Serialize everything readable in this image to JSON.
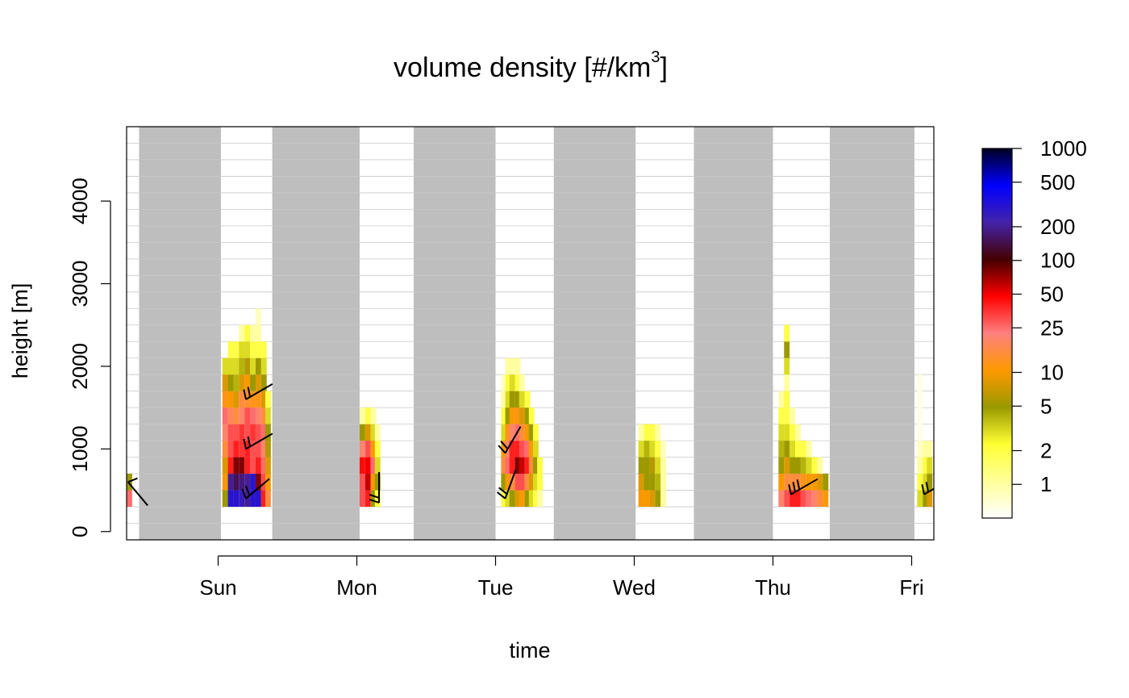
{
  "chart_data": {
    "type": "heatmap",
    "title": "volume density [#/km",
    "title_superscript": "3",
    "title_close": "]",
    "xlabel": "time",
    "ylabel": "height [m]",
    "x_ticks": [
      {
        "label": "Sun",
        "day": 1.0
      },
      {
        "label": "Mon",
        "day": 2.0
      },
      {
        "label": "Tue",
        "day": 3.0
      },
      {
        "label": "Wed",
        "day": 4.0
      },
      {
        "label": "Thu",
        "day": 5.0
      },
      {
        "label": "Fri",
        "day": 6.0
      }
    ],
    "xlim_days": [
      0.34,
      6.16
    ],
    "y_ticks": [
      0,
      1000,
      2000,
      3000,
      4000
    ],
    "ylim": [
      -100,
      4900
    ],
    "night_periods_days": [
      [
        0.43,
        1.02
      ],
      [
        1.39,
        2.02
      ],
      [
        2.41,
        3.0
      ],
      [
        3.42,
        4.01
      ],
      [
        4.43,
        5.0
      ],
      [
        5.41,
        6.02
      ]
    ],
    "colorbar": {
      "scale": "log",
      "range": [
        0.5,
        1000
      ],
      "ticks": [
        1,
        2,
        5,
        10,
        25,
        50,
        100,
        200,
        500,
        1000
      ],
      "colors": [
        "#ffffff",
        "#ffff99",
        "#ffff33",
        "#999900",
        "#ff9900",
        "#ff8080",
        "#ff0000",
        "#440000",
        "#4422aa",
        "#0000ff",
        "#000022"
      ]
    },
    "layers_m": [
      400,
      600,
      800,
      1000,
      1200,
      1400,
      1600,
      1800,
      2000,
      2200,
      2400,
      2600
    ],
    "density_columns": [
      {
        "day": 0.36,
        "values": [
          25,
          5
        ]
      },
      {
        "day": 1.05,
        "values": [
          5,
          10,
          8,
          15,
          20,
          25,
          12,
          8,
          3
        ]
      },
      {
        "day": 1.09,
        "values": [
          300,
          200,
          40,
          30,
          30,
          18,
          10,
          5,
          3,
          2
        ]
      },
      {
        "day": 1.13,
        "values": [
          300,
          150,
          80,
          40,
          30,
          15,
          8,
          4,
          3,
          2
        ]
      },
      {
        "day": 1.17,
        "values": [
          250,
          180,
          80,
          35,
          35,
          20,
          15,
          8,
          4,
          3,
          1
        ]
      },
      {
        "day": 1.21,
        "values": [
          200,
          200,
          40,
          40,
          30,
          30,
          14,
          10,
          6,
          3,
          2
        ]
      },
      {
        "day": 1.25,
        "values": [
          300,
          300,
          30,
          30,
          35,
          25,
          12,
          5,
          3,
          2,
          1
        ]
      },
      {
        "day": 1.29,
        "values": [
          300,
          80,
          40,
          30,
          30,
          20,
          12,
          8,
          5,
          2,
          1,
          0.8
        ]
      },
      {
        "day": 1.33,
        "values": [
          40,
          30,
          25,
          20,
          25,
          15,
          8,
          5,
          3,
          2
        ]
      },
      {
        "day": 1.36,
        "values": [
          15,
          10,
          8,
          6,
          5,
          3,
          2
        ]
      },
      {
        "day": 2.04,
        "values": [
          30,
          30,
          45,
          20,
          5,
          1
        ]
      },
      {
        "day": 2.08,
        "values": [
          40,
          60,
          50,
          30,
          8,
          2
        ]
      },
      {
        "day": 2.12,
        "values": [
          5,
          10,
          25,
          10,
          3,
          1
        ]
      },
      {
        "day": 2.15,
        "values": [
          2,
          5,
          3,
          2,
          1
        ]
      },
      {
        "day": 3.06,
        "values": [
          2,
          5,
          15,
          10,
          3,
          2,
          1,
          0.8
        ]
      },
      {
        "day": 3.09,
        "values": [
          3,
          10,
          25,
          20,
          12,
          5,
          3,
          2,
          1
        ]
      },
      {
        "day": 3.12,
        "values": [
          5,
          15,
          40,
          40,
          20,
          10,
          5,
          3,
          1
        ]
      },
      {
        "day": 3.16,
        "values": [
          8,
          30,
          80,
          40,
          25,
          12,
          5,
          2,
          1
        ]
      },
      {
        "day": 3.19,
        "values": [
          10,
          30,
          60,
          30,
          15,
          8,
          3,
          1
        ]
      },
      {
        "day": 3.23,
        "values": [
          5,
          15,
          40,
          25,
          10,
          5,
          2
        ]
      },
      {
        "day": 3.26,
        "values": [
          3,
          8,
          15,
          10,
          5,
          2
        ]
      },
      {
        "day": 3.29,
        "values": [
          2,
          3,
          5,
          3,
          2
        ]
      },
      {
        "day": 3.32,
        "values": [
          1,
          2,
          2
        ]
      },
      {
        "day": 4.05,
        "values": [
          10,
          8,
          5,
          3,
          1
        ]
      },
      {
        "day": 4.09,
        "values": [
          10,
          5,
          5,
          4,
          2
        ]
      },
      {
        "day": 4.13,
        "values": [
          8,
          5,
          6,
          3,
          2
        ]
      },
      {
        "day": 4.17,
        "values": [
          5,
          4,
          3,
          2,
          1
        ]
      },
      {
        "day": 4.21,
        "values": [
          1,
          1,
          1,
          0.8
        ]
      },
      {
        "day": 5.06,
        "values": [
          20,
          10,
          5,
          4,
          3,
          2,
          1
        ]
      },
      {
        "day": 5.1,
        "values": [
          30,
          15,
          8,
          5,
          3,
          2,
          2,
          1,
          3,
          5,
          2
        ]
      },
      {
        "day": 5.14,
        "values": [
          40,
          15,
          5,
          3,
          2,
          1
        ]
      },
      {
        "day": 5.18,
        "values": [
          40,
          15,
          5,
          2,
          1
        ]
      },
      {
        "day": 5.22,
        "values": [
          30,
          12,
          4,
          2
        ]
      },
      {
        "day": 5.26,
        "values": [
          25,
          10,
          3,
          1
        ]
      },
      {
        "day": 5.3,
        "values": [
          20,
          10,
          2
        ]
      },
      {
        "day": 5.34,
        "values": [
          15,
          8,
          1
        ]
      },
      {
        "day": 5.38,
        "values": [
          10,
          5
        ]
      },
      {
        "day": 6.06,
        "values": [
          3,
          2,
          1,
          0.8,
          0.6,
          0.6,
          0.6,
          0.6
        ]
      },
      {
        "day": 6.1,
        "values": [
          5,
          3,
          2,
          1
        ]
      },
      {
        "day": 6.13,
        "values": [
          8,
          5,
          3,
          1
        ]
      }
    ],
    "wind_barbs": [
      {
        "day": 0.35,
        "height": 600,
        "dir": 320,
        "barbs": 1
      },
      {
        "day": 1.2,
        "height": 400,
        "dir": 230,
        "barbs": 2
      },
      {
        "day": 1.2,
        "height": 1000,
        "dir": 240,
        "barbs": 2
      },
      {
        "day": 1.2,
        "height": 1600,
        "dir": 240,
        "barbs": 2
      },
      {
        "day": 2.16,
        "height": 350,
        "dir": 180,
        "barbs": 2
      },
      {
        "day": 3.07,
        "height": 400,
        "dir": 200,
        "barbs": 2
      },
      {
        "day": 3.07,
        "height": 950,
        "dir": 210,
        "barbs": 2
      },
      {
        "day": 5.13,
        "height": 450,
        "dir": 240,
        "barbs": 3
      },
      {
        "day": 6.09,
        "height": 450,
        "dir": 240,
        "barbs": 2
      }
    ]
  }
}
